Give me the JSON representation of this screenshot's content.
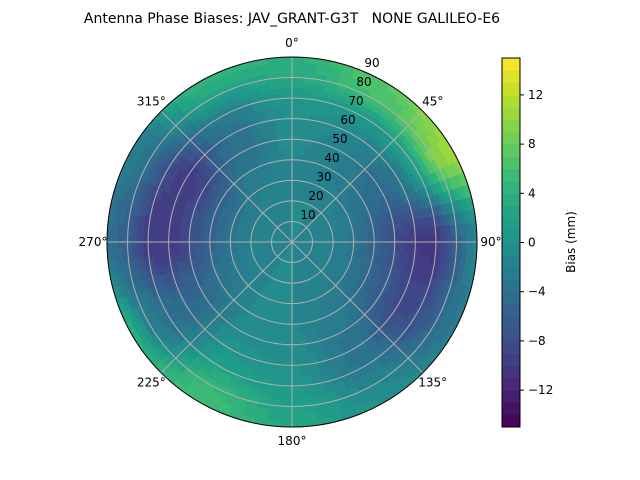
{
  "chart_data": {
    "type": "heatmap",
    "subtype": "polar-contour",
    "title": "Antenna Phase Biases: JAV_GRANT-G3T   NONE GALILEO-E6",
    "theta_direction": "clockwise",
    "theta_zero": "north",
    "theta_tick_labels": [
      "0°",
      "45°",
      "90°",
      "135°",
      "180°",
      "225°",
      "270°",
      "315°"
    ],
    "r_tick_labels": [
      "10",
      "20",
      "30",
      "40",
      "50",
      "60",
      "70",
      "80",
      "90"
    ],
    "rlim": [
      0,
      90
    ],
    "grid": true,
    "colormap": "viridis",
    "colorbar": {
      "label": "Bias (mm)",
      "range": [
        -15,
        15
      ],
      "ticks": [
        -12,
        -8,
        -4,
        0,
        4,
        8,
        12
      ],
      "tick_labels": [
        "−12",
        "−8",
        "−4",
        "0",
        "4",
        "8",
        "12"
      ]
    },
    "azimuth_deg": [
      0,
      30,
      60,
      90,
      120,
      150,
      180,
      210,
      240,
      270,
      300,
      330
    ],
    "zenith_deg": [
      0,
      10,
      20,
      30,
      40,
      50,
      60,
      70,
      80,
      90
    ],
    "values_mm": [
      [
        -1,
        -1,
        -1,
        -1,
        -1,
        -1,
        -1,
        -1,
        -1,
        -1,
        -1,
        -1
      ],
      [
        -1,
        -1,
        -1.2,
        -1.4,
        -1.4,
        -1.2,
        -1,
        -1,
        -1.2,
        -1.4,
        -1.4,
        -1.2
      ],
      [
        -1,
        -1,
        -1.5,
        -2,
        -2,
        -1.5,
        -1,
        -1,
        -1.5,
        -2,
        -2,
        -1.5
      ],
      [
        -1,
        -1.5,
        -2.5,
        -3.5,
        -3,
        -2,
        -1,
        -1,
        -2.5,
        -3.5,
        -3.5,
        -2
      ],
      [
        -1,
        -2,
        -4,
        -5.5,
        -4.5,
        -2.5,
        -1,
        -1,
        -3.5,
        -5.5,
        -5.5,
        -3
      ],
      [
        -0.5,
        -2,
        -5,
        -8,
        -6.5,
        -3,
        -0.5,
        -0.5,
        -5,
        -8,
        -8.5,
        -4
      ],
      [
        0,
        -1,
        -3,
        -10,
        -8.5,
        -3.5,
        0,
        0.5,
        -5,
        -10,
        -10,
        -4
      ],
      [
        1,
        1,
        2,
        -10.5,
        -8,
        -3,
        1,
        2,
        -4,
        -10,
        -8,
        -2
      ],
      [
        3,
        6,
        9,
        -6,
        -5,
        -1,
        2,
        5,
        -2,
        -6,
        -4,
        2
      ],
      [
        4,
        7,
        11,
        -1,
        -2,
        0,
        3,
        6,
        4,
        -4,
        -2,
        5
      ]
    ]
  }
}
